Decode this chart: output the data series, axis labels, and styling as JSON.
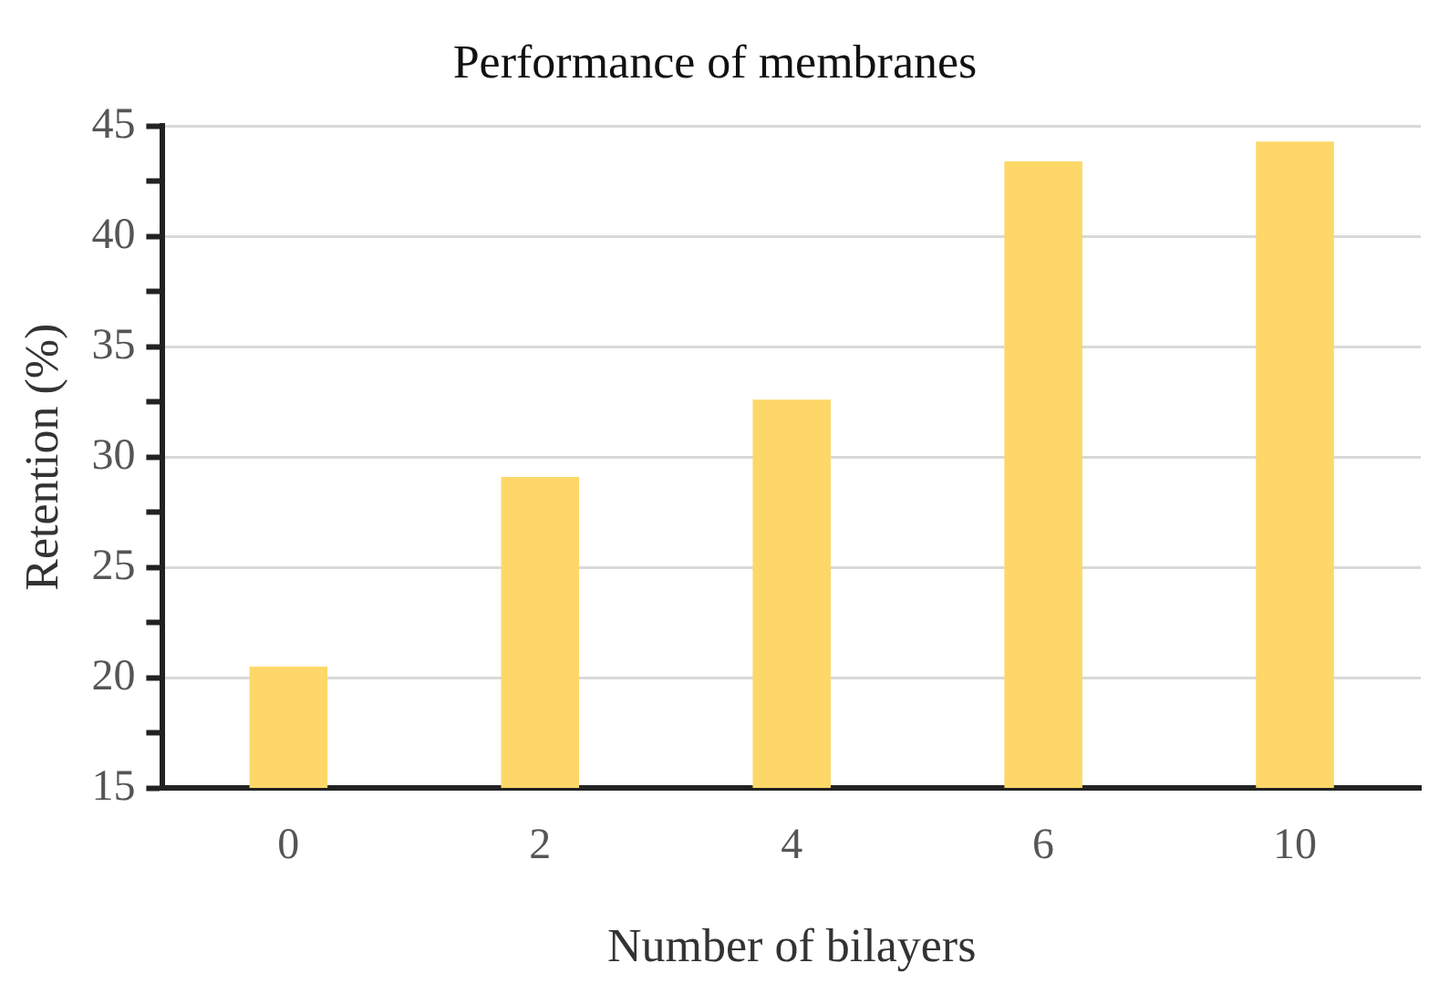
{
  "chart_data": {
    "type": "bar",
    "title": "Performance of membranes",
    "xlabel": "Number of bilayers",
    "ylabel": "Retention (%)",
    "categories": [
      "0",
      "2",
      "4",
      "6",
      "10"
    ],
    "values": [
      20.5,
      29.1,
      32.6,
      43.4,
      44.3
    ],
    "color": "#fdd868",
    "ylim": [
      15,
      45
    ],
    "yticks": [
      15,
      {
        "value": 17.5,
        "label": null
      },
      20,
      {
        "value": 22.5,
        "label": null
      },
      25,
      {
        "value": 27.5,
        "label": null
      },
      30,
      {
        "value": 32.5,
        "label": null
      },
      35,
      {
        "value": 37.5,
        "label": null
      },
      40,
      {
        "value": 42.5,
        "label": null
      },
      45
    ],
    "grid": "y",
    "legend": false
  }
}
